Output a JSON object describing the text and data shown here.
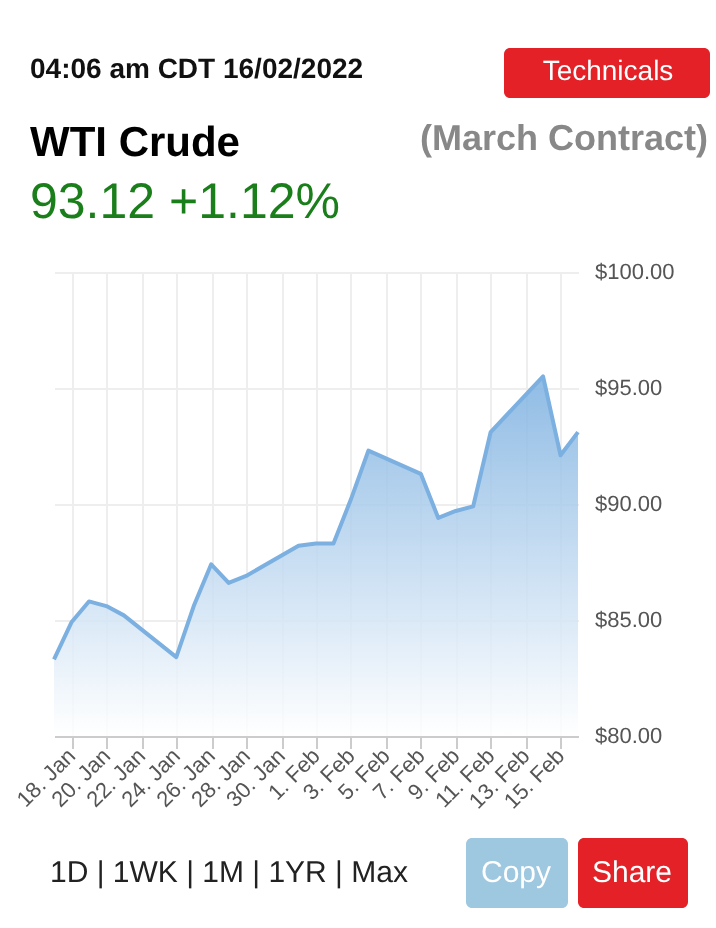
{
  "chart_data": {
    "type": "area",
    "title": "WTI Crude",
    "subtitle": "(March Contract)",
    "annotations": [
      "04:06 am CDT 16/02/2022",
      "93.12 +1.12%",
      "Technicals",
      "1D | 1WK | 1M | 1YR | Max",
      "Copy",
      "Share"
    ],
    "x": [
      "2022-01-17",
      "2022-01-18",
      "2022-01-19",
      "2022-01-20",
      "2022-01-21",
      "2022-01-24",
      "2022-01-25",
      "2022-01-26",
      "2022-01-27",
      "2022-01-28",
      "2022-01-31",
      "2022-02-01",
      "2022-02-02",
      "2022-02-03",
      "2022-02-04",
      "2022-02-07",
      "2022-02-08",
      "2022-02-09",
      "2022-02-10",
      "2022-02-11",
      "2022-02-14",
      "2022-02-15",
      "2022-02-16"
    ],
    "series": [
      {
        "color": "#7cb0e0",
        "values": [
          83.3,
          84.9,
          85.8,
          85.6,
          85.2,
          83.4,
          85.6,
          87.4,
          86.6,
          86.9,
          88.2,
          88.3,
          88.3,
          90.2,
          92.3,
          91.3,
          89.4,
          89.7,
          89.9,
          93.1,
          95.5,
          92.1,
          93.1
        ]
      }
    ],
    "xlim": [
      "2022-01-17",
      "2022-02-16"
    ],
    "xticks": [
      {
        "value": "2022-01-18",
        "label": "18. Jan"
      },
      {
        "value": "2022-01-20",
        "label": "20. Jan"
      },
      {
        "value": "2022-01-22",
        "label": "22. Jan"
      },
      {
        "value": "2022-01-24",
        "label": "24. Jan"
      },
      {
        "value": "2022-01-26",
        "label": "26. Jan"
      },
      {
        "value": "2022-01-28",
        "label": "28. Jan"
      },
      {
        "value": "2022-01-30",
        "label": "30. Jan"
      },
      {
        "value": "2022-02-01",
        "label": "1. Feb"
      },
      {
        "value": "2022-02-03",
        "label": "3. Feb"
      },
      {
        "value": "2022-02-05",
        "label": "5. Feb"
      },
      {
        "value": "2022-02-07",
        "label": "7. Feb"
      },
      {
        "value": "2022-02-09",
        "label": "9. Feb"
      },
      {
        "value": "2022-02-11",
        "label": "11. Feb"
      },
      {
        "value": "2022-02-13",
        "label": "13. Feb"
      },
      {
        "value": "2022-02-15",
        "label": "15. Feb"
      }
    ],
    "ylim": [
      80,
      100
    ],
    "yticks": [
      {
        "value": 80,
        "label": "$80.00"
      },
      {
        "value": 85,
        "label": "$85.00"
      },
      {
        "value": 90,
        "label": "$90.00"
      },
      {
        "value": 95,
        "label": "$95.00"
      },
      {
        "value": 100,
        "label": "$100.00"
      }
    ],
    "grid": true,
    "marker": "none",
    "line_style": "solid"
  }
}
